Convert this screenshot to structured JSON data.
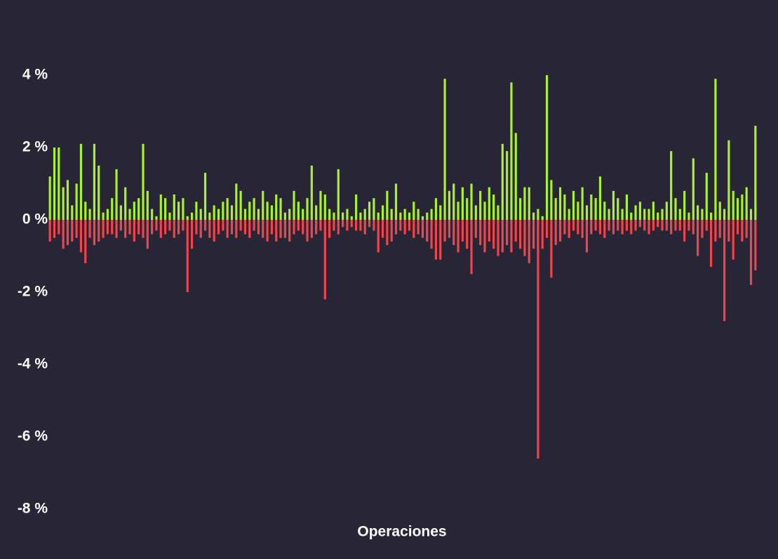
{
  "chart_data": {
    "type": "bar",
    "x_label": "Operaciones",
    "ylim": [
      -8,
      6
    ],
    "yticks": [
      {
        "value": -8,
        "label": "-8 %"
      },
      {
        "value": -6,
        "label": "-6 %"
      },
      {
        "value": -4,
        "label": "-4 %"
      },
      {
        "value": -2,
        "label": "-2 %"
      },
      {
        "value": 0,
        "label": "0 %"
      },
      {
        "value": 2,
        "label": "2 %"
      },
      {
        "value": 4,
        "label": "4 %"
      }
    ],
    "series": [
      {
        "color": "#a8f230",
        "values": [
          1.2,
          2.0,
          2.0,
          0.9,
          1.1,
          0.4,
          1.0,
          2.1,
          0.5,
          0.3,
          2.1,
          1.5,
          0.2,
          0.3,
          0.6,
          1.4,
          0.4,
          0.9,
          0.3,
          0.5,
          0.6,
          2.1,
          0.8,
          0.3,
          0.1,
          0.7,
          0.6,
          0.2,
          0.7,
          0.5,
          0.6,
          0.1,
          0.2,
          0.5,
          0.3,
          1.3,
          0.2,
          0.4,
          0.3,
          0.5,
          0.6,
          0.4,
          1.0,
          0.8,
          0.3,
          0.5,
          0.6,
          0.3,
          0.8,
          0.5,
          0.4,
          0.7,
          0.6,
          0.2,
          0.3,
          0.8,
          0.5,
          0.3,
          0.6,
          1.5,
          0.4,
          0.8,
          0.7,
          0.3,
          0.2,
          1.4,
          0.2,
          0.3,
          0.1,
          0.7,
          0.2,
          0.3,
          0.5,
          0.6,
          0.2,
          0.4,
          0.8,
          0.3,
          1.0,
          0.2,
          0.3,
          0.2,
          0.5,
          0.3,
          0.1,
          0.2,
          0.3,
          0.6,
          0.4,
          3.9,
          0.8,
          1.0,
          0.5,
          0.9,
          0.6,
          1.0,
          0.4,
          0.8,
          0.5,
          0.9,
          0.7,
          0.4,
          2.1,
          1.9,
          3.8,
          2.4,
          0.6,
          0.9,
          0.9,
          0.2,
          0.3,
          0.1,
          4.0,
          1.1,
          0.6,
          0.9,
          0.7,
          0.3,
          0.8,
          0.5,
          0.9,
          0.4,
          0.7,
          0.6,
          1.2,
          0.5,
          0.3,
          0.8,
          0.6,
          0.3,
          0.7,
          0.2,
          0.4,
          0.5,
          0.3,
          0.3,
          0.5,
          0.2,
          0.3,
          0.5,
          1.9,
          0.6,
          0.3,
          0.8,
          0.2,
          1.7,
          0.4,
          0.3,
          1.3,
          0.2,
          3.9,
          0.5,
          0.3,
          2.2,
          0.8,
          0.6,
          0.7,
          0.9,
          0.3,
          2.6
        ]
      },
      {
        "color": "#f0464b",
        "values": [
          -0.6,
          -0.5,
          -0.4,
          -0.8,
          -0.7,
          -0.6,
          -0.5,
          -0.9,
          -1.2,
          -0.5,
          -0.7,
          -0.6,
          -0.5,
          -0.4,
          -0.4,
          -0.5,
          -0.3,
          -0.5,
          -0.4,
          -0.6,
          -0.4,
          -0.5,
          -0.8,
          -0.4,
          -0.3,
          -0.5,
          -0.4,
          -0.3,
          -0.5,
          -0.4,
          -0.3,
          -2.0,
          -0.8,
          -0.4,
          -0.5,
          -0.3,
          -0.5,
          -0.6,
          -0.4,
          -0.3,
          -0.5,
          -0.4,
          -0.5,
          -0.3,
          -0.4,
          -0.5,
          -0.3,
          -0.4,
          -0.5,
          -0.6,
          -0.4,
          -0.6,
          -0.5,
          -0.5,
          -0.6,
          -0.4,
          -0.3,
          -0.4,
          -0.6,
          -0.5,
          -0.4,
          -0.3,
          -2.2,
          -0.5,
          -0.3,
          -0.4,
          -0.2,
          -0.3,
          -0.2,
          -0.3,
          -0.3,
          -0.4,
          -0.2,
          -0.3,
          -0.9,
          -0.5,
          -0.7,
          -0.6,
          -0.4,
          -0.3,
          -0.4,
          -0.3,
          -0.5,
          -0.4,
          -0.5,
          -0.6,
          -0.8,
          -1.1,
          -1.1,
          -0.6,
          -0.5,
          -0.7,
          -0.9,
          -0.6,
          -0.8,
          -1.5,
          -0.5,
          -0.7,
          -0.9,
          -0.6,
          -0.8,
          -1.0,
          -0.9,
          -0.7,
          -0.9,
          -0.6,
          -0.8,
          -1.0,
          -1.2,
          -0.8,
          -6.6,
          -0.8,
          -0.5,
          -1.6,
          -0.7,
          -0.6,
          -0.4,
          -0.5,
          -0.3,
          -0.4,
          -0.5,
          -0.9,
          -0.4,
          -0.3,
          -0.4,
          -0.5,
          -0.3,
          -0.4,
          -0.3,
          -0.4,
          -0.3,
          -0.4,
          -0.3,
          -0.2,
          -0.3,
          -0.4,
          -0.3,
          -0.2,
          -0.3,
          -0.3,
          -0.4,
          -0.3,
          -0.3,
          -0.6,
          -0.3,
          -0.4,
          -1.0,
          -0.5,
          -0.3,
          -1.3,
          -0.6,
          -0.5,
          -2.8,
          -0.6,
          -1.1,
          -0.4,
          -0.6,
          -0.5,
          -1.8,
          -1.4
        ]
      }
    ]
  }
}
